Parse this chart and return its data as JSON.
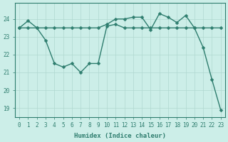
{
  "xlabel": "Humidex (Indice chaleur)",
  "x": [
    0,
    1,
    2,
    3,
    4,
    5,
    6,
    7,
    8,
    9,
    10,
    11,
    12,
    13,
    14,
    15,
    16,
    17,
    18,
    19,
    20,
    21,
    22,
    23
  ],
  "series1": [
    23.5,
    23.9,
    23.5,
    23.5,
    23.5,
    23.5,
    23.5,
    23.5,
    23.5,
    23.5,
    23.7,
    24.0,
    24.0,
    24.1,
    24.1,
    23.4,
    24.3,
    24.1,
    23.8,
    24.2,
    23.5,
    23.5,
    23.5,
    23.5
  ],
  "series2": [
    23.5,
    23.5,
    23.5,
    22.8,
    21.5,
    21.3,
    21.5,
    21.0,
    21.5,
    21.5,
    23.6,
    23.7,
    23.5,
    23.5,
    23.5,
    23.5,
    23.5,
    23.5,
    23.5,
    23.5,
    23.5,
    22.4,
    20.6,
    18.9
  ],
  "line_color": "#2e7d6e",
  "bg_color": "#cceee8",
  "grid_color": "#b0d8d0",
  "ylim": [
    18.5,
    24.9
  ],
  "yticks": [
    19,
    20,
    21,
    22,
    23,
    24
  ],
  "xticks": [
    0,
    1,
    2,
    3,
    4,
    5,
    6,
    7,
    8,
    9,
    10,
    11,
    12,
    13,
    14,
    15,
    16,
    17,
    18,
    19,
    20,
    21,
    22,
    23
  ],
  "markersize": 2.5,
  "linewidth": 1.0,
  "tick_fontsize": 5.5,
  "xlabel_fontsize": 6.5
}
